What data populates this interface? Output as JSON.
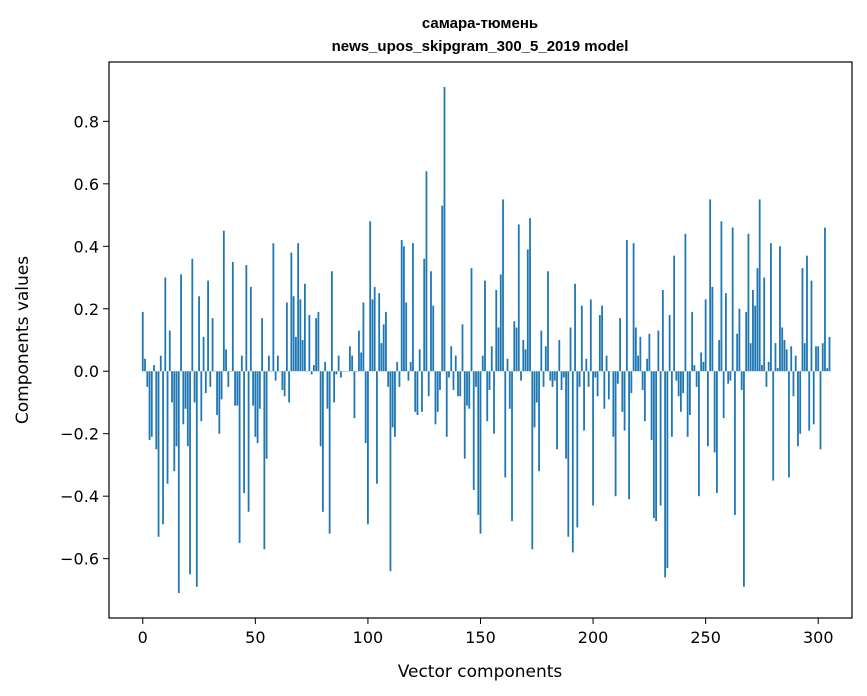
{
  "chart_data": {
    "type": "bar",
    "title_line1": "самара-тюмень",
    "title_line2": "news_upos_skipgram_300_5_2019 model",
    "xlabel": "Vector components",
    "ylabel": "Components values",
    "xlim": [
      -15,
      315
    ],
    "ylim": [
      -0.79,
      0.99
    ],
    "xticks": [
      0,
      50,
      100,
      150,
      200,
      250,
      300
    ],
    "yticks": [
      -0.6,
      -0.4,
      -0.2,
      0.0,
      0.2,
      0.4,
      0.6,
      0.8
    ],
    "ytick_labels": [
      "−0.6",
      "−0.4",
      "−0.2",
      "0.0",
      "0.2",
      "0.4",
      "0.6",
      "0.8"
    ],
    "grid": false,
    "color": "#1f77b4",
    "values": [
      0.19,
      0.04,
      -0.05,
      -0.22,
      -0.21,
      0.02,
      -0.25,
      -0.53,
      0.05,
      -0.49,
      0.3,
      -0.36,
      0.13,
      -0.1,
      -0.32,
      -0.24,
      -0.71,
      0.31,
      -0.17,
      -0.12,
      -0.24,
      -0.65,
      0.36,
      -0.1,
      -0.69,
      0.24,
      -0.16,
      0.11,
      -0.07,
      0.29,
      -0.05,
      0.17,
      0.0,
      -0.14,
      -0.2,
      -0.09,
      0.45,
      0.07,
      -0.05,
      0.0,
      0.35,
      -0.11,
      -0.11,
      -0.55,
      0.05,
      -0.39,
      0.34,
      -0.45,
      0.27,
      -0.11,
      -0.21,
      -0.23,
      -0.12,
      0.17,
      -0.57,
      -0.28,
      0.05,
      0.0,
      0.41,
      -0.03,
      0.05,
      0.0,
      -0.06,
      -0.08,
      0.22,
      -0.1,
      0.38,
      0.24,
      0.11,
      0.41,
      0.23,
      0.1,
      0.28,
      0.0,
      0.18,
      -0.01,
      0.02,
      0.17,
      0.19,
      -0.24,
      -0.45,
      0.03,
      -0.12,
      -0.52,
      0.32,
      -0.1,
      -0.01,
      0.05,
      -0.02,
      0.0,
      0.0,
      0.0,
      0.08,
      0.05,
      -0.15,
      0.0,
      0.13,
      0.06,
      0.22,
      -0.23,
      -0.49,
      0.48,
      0.23,
      0.27,
      -0.36,
      0.25,
      0.09,
      0.15,
      0.19,
      -0.05,
      -0.64,
      -0.18,
      -0.21,
      0.03,
      -0.05,
      0.42,
      0.4,
      0.22,
      -0.03,
      0.03,
      0.41,
      -0.13,
      -0.14,
      0.07,
      -0.13,
      0.36,
      0.64,
      -0.08,
      0.32,
      0.21,
      -0.17,
      -0.13,
      -0.06,
      0.53,
      0.91,
      -0.21,
      -0.02,
      0.08,
      -0.06,
      0.05,
      -0.08,
      -0.08,
      0.15,
      -0.28,
      -0.11,
      -0.12,
      0.33,
      -0.38,
      -0.05,
      -0.46,
      -0.52,
      0.05,
      0.29,
      -0.16,
      -0.06,
      0.08,
      -0.2,
      0.26,
      0.14,
      0.31,
      0.55,
      -0.34,
      0.04,
      -0.12,
      -0.48,
      0.16,
      0.14,
      0.47,
      -0.03,
      0.1,
      0.07,
      0.39,
      0.49,
      -0.57,
      -0.18,
      -0.1,
      -0.32,
      0.13,
      -0.05,
      0.08,
      0.32,
      -0.03,
      -0.05,
      -0.03,
      -0.25,
      0.1,
      -0.06,
      -0.02,
      -0.28,
      -0.53,
      0.14,
      -0.58,
      0.28,
      -0.5,
      -0.05,
      0.21,
      -0.19,
      0.04,
      -0.05,
      0.23,
      -0.43,
      -0.02,
      -0.08,
      0.18,
      0.21,
      -0.12,
      0.05,
      -0.09,
      0.0,
      -0.21,
      -0.4,
      -0.04,
      0.17,
      -0.13,
      -0.19,
      0.42,
      -0.41,
      -0.07,
      0.41,
      0.14,
      0.05,
      0.11,
      -0.06,
      -0.16,
      0.04,
      0.12,
      -0.22,
      -0.47,
      -0.48,
      0.13,
      -0.43,
      0.26,
      -0.66,
      -0.63,
      0.18,
      -0.21,
      0.37,
      -0.03,
      -0.08,
      -0.13,
      -0.07,
      0.44,
      -0.21,
      -0.14,
      0.19,
      0.02,
      -0.05,
      -0.4,
      0.06,
      0.03,
      0.23,
      -0.24,
      0.55,
      0.27,
      -0.26,
      -0.39,
      0.1,
      0.48,
      -0.15,
      0.25,
      -0.04,
      -0.03,
      0.46,
      -0.46,
      0.12,
      0.2,
      -0.06,
      -0.69,
      0.19,
      0.44,
      0.09,
      0.26,
      0.21,
      0.33,
      0.55,
      0.02,
      0.3,
      -0.05,
      0.03,
      0.41,
      -0.35,
      0.09,
      0.01,
      0.4,
      0.14,
      0.1,
      0.07,
      -0.34,
      0.08,
      -0.08,
      0.05,
      -0.24,
      -0.2,
      0.33,
      0.09,
      0.37,
      -0.19,
      0.29,
      -0.17,
      0.08,
      0.08,
      -0.25,
      0.09,
      0.46,
      0.01,
      0.11
    ]
  }
}
